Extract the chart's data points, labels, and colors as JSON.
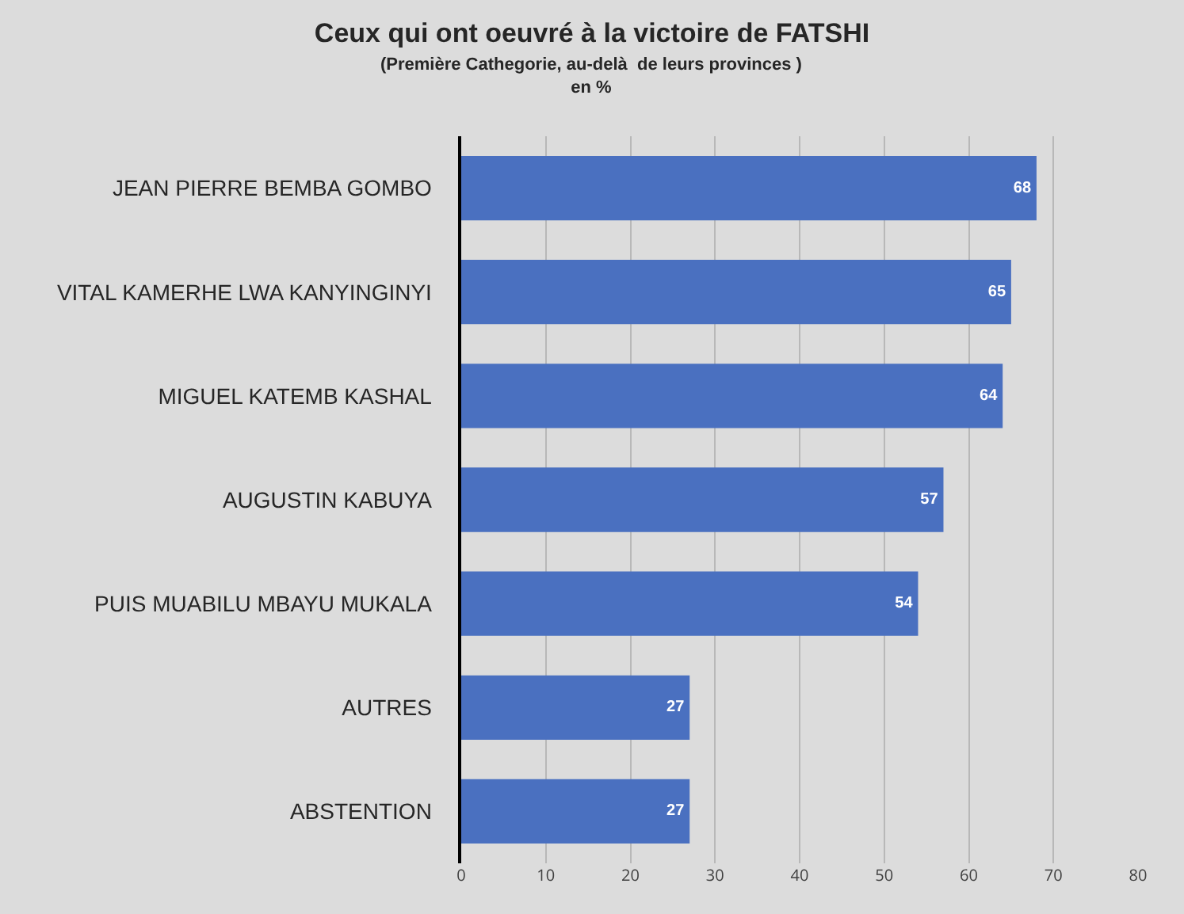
{
  "chart_data": {
    "type": "bar",
    "orientation": "horizontal",
    "title": "Ceux qui ont oeuvré à la victoire de FATSHI",
    "subtitle": "(Première Cathegorie, au-delà  de leurs provinces )\nen %",
    "categories": [
      "JEAN PIERRE BEMBA GOMBO",
      "VITAL KAMERHE LWA KANYINGINYI",
      "MIGUEL KATEMB KASHAL",
      "AUGUSTIN KABUYA",
      "PUIS MUABILU MBAYU MUKALA",
      "AUTRES",
      "ABSTENTION"
    ],
    "values": [
      68,
      65,
      64,
      57,
      54,
      27,
      27
    ],
    "color": "#4a70c0",
    "xlim": [
      0,
      80
    ],
    "xticks": [
      0,
      10,
      20,
      30,
      40,
      50,
      60,
      70,
      80
    ],
    "grid": "x",
    "data_labels": true,
    "legend": false
  }
}
